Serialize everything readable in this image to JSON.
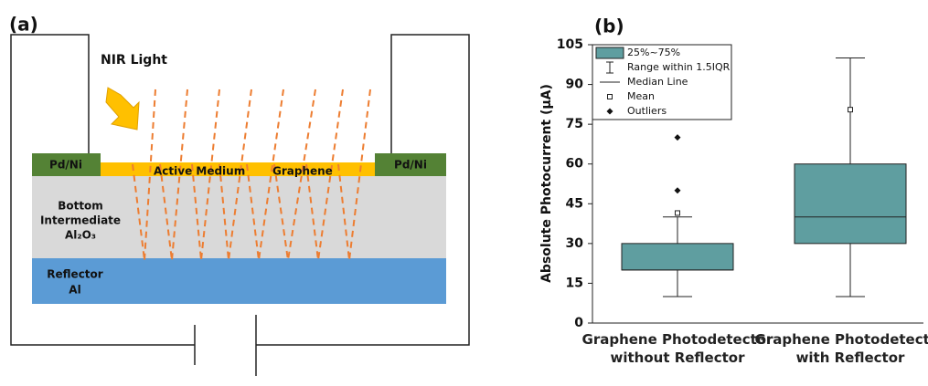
{
  "panel_a": {
    "label": "(a)",
    "light": "NIR Light",
    "left_contact": "Pd/Ni",
    "right_contact": "Pd/Ni",
    "active": "Active Medium",
    "graphene": "Graphene",
    "bottom_lines": [
      "Bottom",
      "Intermediate",
      "Al₂O₃"
    ],
    "reflector_lines": [
      "Reflector",
      "Al"
    ]
  },
  "chart_data": {
    "type": "box",
    "panel_label": "(b)",
    "ylabel": "Absolute Photocurrent (μA)",
    "categories": [
      "Graphene Photodetector without Reflector",
      "Graphene Photodetector with Reflector"
    ],
    "color": "#5f9ea0",
    "boxes": [
      {
        "min": 10,
        "q1": 20,
        "median": 20,
        "q3": 30,
        "max": 40,
        "mean": 41.5,
        "outliers": [
          50,
          70
        ]
      },
      {
        "min": 10,
        "q1": 30,
        "median": 40,
        "q3": 60,
        "max": 100,
        "mean": 80.5,
        "outliers": []
      }
    ],
    "legend": [
      "25%~75%",
      "Range within 1.5IQR",
      "Median Line",
      "Mean",
      "Outliers"
    ],
    "ylim": [
      0,
      105
    ],
    "yticks": [
      0,
      15,
      30,
      45,
      60,
      75,
      90,
      105
    ]
  }
}
